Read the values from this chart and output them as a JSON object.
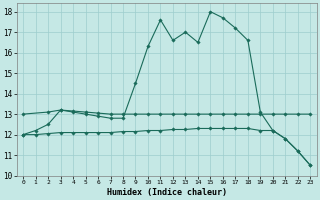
{
  "xlabel": "Humidex (Indice chaleur)",
  "xlim": [
    -0.5,
    23.5
  ],
  "ylim": [
    10,
    18.4
  ],
  "yticks": [
    10,
    11,
    12,
    13,
    14,
    15,
    16,
    17,
    18
  ],
  "xticks": [
    0,
    1,
    2,
    3,
    4,
    5,
    6,
    7,
    8,
    9,
    10,
    11,
    12,
    13,
    14,
    15,
    16,
    17,
    18,
    19,
    20,
    21,
    22,
    23
  ],
  "bg_color": "#c5e8e5",
  "line_color": "#1a6b5a",
  "grid_color": "#9ecece",
  "line1_x": [
    0,
    1,
    2,
    3,
    4,
    5,
    6,
    7,
    8,
    9,
    10,
    11,
    12,
    13,
    14,
    15,
    16,
    17,
    18,
    19,
    20,
    21,
    22,
    23
  ],
  "line1_y": [
    12.0,
    12.2,
    12.5,
    13.2,
    13.1,
    13.0,
    12.9,
    12.8,
    12.8,
    14.5,
    16.3,
    17.6,
    16.6,
    17.0,
    16.5,
    18.0,
    17.7,
    17.2,
    16.6,
    13.1,
    12.2,
    11.8,
    11.2,
    10.5
  ],
  "line2_x": [
    0,
    2,
    3,
    4,
    5,
    6,
    7,
    8,
    9,
    10,
    11,
    12,
    13,
    14,
    15,
    16,
    17,
    18,
    19,
    20,
    21,
    22,
    23
  ],
  "line2_y": [
    13.0,
    13.1,
    13.2,
    13.15,
    13.1,
    13.05,
    13.0,
    13.0,
    13.0,
    13.0,
    13.0,
    13.0,
    13.0,
    13.0,
    13.0,
    13.0,
    13.0,
    13.0,
    13.0,
    13.0,
    13.0,
    13.0,
    13.0
  ],
  "line3_x": [
    0,
    1,
    2,
    3,
    4,
    5,
    6,
    7,
    8,
    9,
    10,
    11,
    12,
    13,
    14,
    15,
    16,
    17,
    18,
    19,
    20,
    21,
    22,
    23
  ],
  "line3_y": [
    12.0,
    12.0,
    12.05,
    12.1,
    12.1,
    12.1,
    12.1,
    12.1,
    12.15,
    12.15,
    12.2,
    12.2,
    12.25,
    12.25,
    12.3,
    12.3,
    12.3,
    12.3,
    12.3,
    12.2,
    12.2,
    11.8,
    11.2,
    10.5
  ]
}
